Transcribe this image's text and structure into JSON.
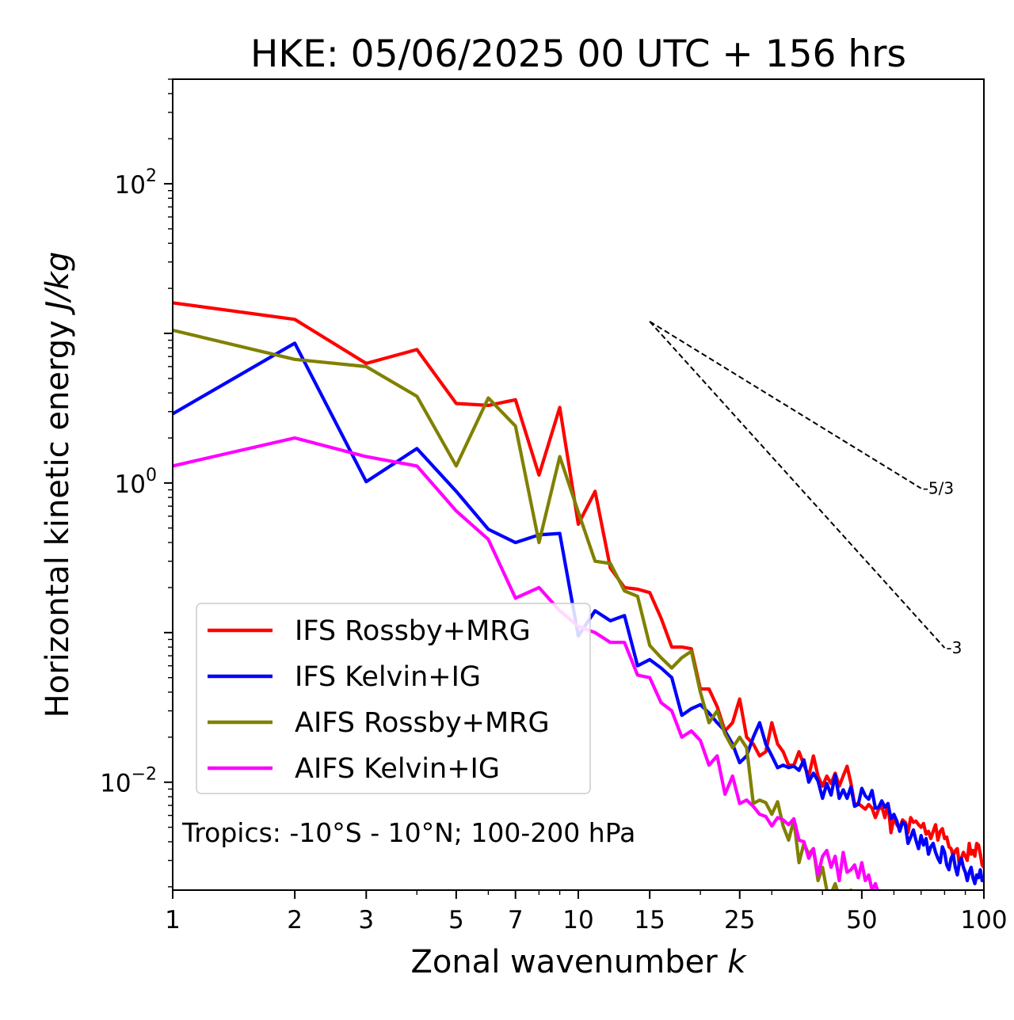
{
  "chart_data": {
    "type": "line",
    "title": "HKE: 05/06/2025 00 UTC + 156 hrs",
    "xlabel_text": "Zonal wavenumber ",
    "xlabel_var": "k",
    "ylabel_text": "Horizontal kinetic energy ",
    "ylabel_unit": "J/kg",
    "x_scale": "log",
    "y_scale": "log",
    "xlim": [
      1,
      100
    ],
    "ylim": [
      0.0019,
      500
    ],
    "x_ticks": [
      1,
      2,
      3,
      5,
      7,
      10,
      15,
      25,
      50,
      100
    ],
    "x_tick_labels": [
      "1",
      "2",
      "3",
      "5",
      "7",
      "10",
      "15",
      "25",
      "50",
      "100"
    ],
    "y_ticks": [
      {
        "value": 100,
        "base": "10",
        "exp": "2"
      },
      {
        "value": 1,
        "base": "10",
        "exp": "0"
      },
      {
        "value": 0.01,
        "base": "10",
        "exp": "−2"
      }
    ],
    "grid": false,
    "legend_position": "lower-left",
    "annotation": "Tropics: -10°S - 10°N; 100-200 hPa",
    "reference_slopes": [
      {
        "label": "-5/3",
        "exponent": -1.6667,
        "x_start": 15,
        "y_start": 12,
        "x_end": 70
      },
      {
        "label": "-3",
        "exponent": -3,
        "x_start": 15,
        "y_start": 12,
        "x_end": 80
      }
    ],
    "series": [
      {
        "name": "IFS Rossby+MRG",
        "color": "#ff0000",
        "x": [
          1,
          2,
          3,
          4,
          5,
          6,
          7,
          8,
          9,
          10,
          11,
          12,
          13,
          14,
          15,
          16,
          17,
          18,
          19,
          20,
          21,
          22,
          23,
          24,
          25,
          26,
          27,
          28,
          29,
          30,
          31,
          32,
          33,
          34,
          35,
          36,
          37,
          38,
          39,
          40,
          41,
          42,
          43,
          44,
          45,
          46,
          47,
          48,
          49,
          50,
          51,
          52,
          53,
          54,
          55,
          56,
          57,
          58,
          59,
          60,
          61,
          62,
          63,
          64,
          65,
          66,
          67,
          68,
          69,
          70,
          71,
          72,
          73,
          74,
          75,
          76,
          77,
          78,
          79,
          80,
          81,
          82,
          83,
          84,
          85,
          86,
          87,
          88,
          89,
          90,
          91,
          92,
          93,
          94,
          95,
          96,
          97,
          98,
          99,
          100
        ],
        "y": [
          16,
          12.4,
          6.3,
          7.8,
          3.4,
          3.3,
          3.6,
          1.13,
          3.2,
          0.53,
          0.88,
          0.27,
          0.2,
          0.195,
          0.185,
          0.125,
          0.08,
          0.08,
          0.078,
          0.042,
          0.042,
          0.032,
          0.022,
          0.025,
          0.036,
          0.02,
          0.018,
          0.015,
          0.016,
          0.025,
          0.018,
          0.016,
          0.013,
          0.013,
          0.016,
          0.013,
          0.011,
          0.015,
          0.011,
          0.0094,
          0.011,
          0.0098,
          0.0115,
          0.0094,
          0.011,
          0.0128,
          0.0099,
          0.0071,
          0.0072,
          0.0069,
          0.0066,
          0.0071,
          0.0067,
          0.0058,
          0.0066,
          0.0069,
          0.0058,
          0.0072,
          0.0046,
          0.0058,
          0.0052,
          0.0049,
          0.0056,
          0.0054,
          0.0046,
          0.0058,
          0.0054,
          0.0055,
          0.0052,
          0.005,
          0.0053,
          0.0045,
          0.0047,
          0.0042,
          0.0047,
          0.0052,
          0.0041,
          0.0047,
          0.0049,
          0.0042,
          0.0043,
          0.0037,
          0.0036,
          0.0032,
          0.0035,
          0.0036,
          0.0028,
          0.0031,
          0.0034,
          0.0032,
          0.003,
          0.0039,
          0.0033,
          0.0035,
          0.0032,
          0.0039,
          0.0038,
          0.0033,
          0.0028,
          0.0027
        ]
      },
      {
        "name": "IFS Kelvin+IG",
        "color": "#0000ff",
        "x": [
          1,
          2,
          3,
          4,
          5,
          6,
          7,
          8,
          9,
          10,
          11,
          12,
          13,
          14,
          15,
          16,
          17,
          18,
          19,
          20,
          21,
          22,
          23,
          24,
          25,
          26,
          27,
          28,
          29,
          30,
          31,
          32,
          33,
          34,
          35,
          36,
          37,
          38,
          39,
          40,
          41,
          42,
          43,
          44,
          45,
          46,
          47,
          48,
          49,
          50,
          51,
          52,
          53,
          54,
          55,
          56,
          57,
          58,
          59,
          60,
          61,
          62,
          63,
          64,
          65,
          66,
          67,
          68,
          69,
          70,
          71,
          72,
          73,
          74,
          75,
          76,
          77,
          78,
          79,
          80,
          81,
          82,
          83,
          84,
          85,
          86,
          87,
          88,
          89,
          90,
          91,
          92,
          93,
          94,
          95,
          96,
          97,
          98,
          99,
          100
        ],
        "y": [
          2.9,
          8.6,
          1.02,
          1.7,
          0.88,
          0.49,
          0.4,
          0.45,
          0.46,
          0.095,
          0.14,
          0.12,
          0.13,
          0.06,
          0.066,
          0.058,
          0.05,
          0.028,
          0.031,
          0.033,
          0.029,
          0.025,
          0.022,
          0.018,
          0.0135,
          0.015,
          0.02,
          0.025,
          0.018,
          0.015,
          0.0125,
          0.013,
          0.0125,
          0.0128,
          0.012,
          0.0141,
          0.01,
          0.0115,
          0.0102,
          0.0078,
          0.0098,
          0.0082,
          0.0112,
          0.0078,
          0.0089,
          0.0078,
          0.0093,
          0.0069,
          0.0071,
          0.0091,
          0.0081,
          0.0077,
          0.0088,
          0.0067,
          0.0068,
          0.0075,
          0.0068,
          0.0072,
          0.0057,
          0.0061,
          0.0055,
          0.0047,
          0.0054,
          0.0052,
          0.0039,
          0.0043,
          0.0048,
          0.0041,
          0.0036,
          0.0044,
          0.0038,
          0.0042,
          0.0033,
          0.0037,
          0.0039,
          0.0034,
          0.0031,
          0.0029,
          0.0037,
          0.0034,
          0.0028,
          0.0026,
          0.0031,
          0.0033,
          0.0027,
          0.0024,
          0.0029,
          0.0031,
          0.0027,
          0.0025,
          0.0022,
          0.0025,
          0.0027,
          0.0023,
          0.0021,
          0.0024,
          0.0023,
          0.0026,
          0.0022,
          0.0023
        ]
      },
      {
        "name": "AIFS Rossby+MRG",
        "color": "#808000",
        "x": [
          1,
          2,
          3,
          4,
          5,
          6,
          7,
          8,
          9,
          10,
          11,
          12,
          13,
          14,
          15,
          16,
          17,
          18,
          19,
          20,
          21,
          22,
          23,
          24,
          25,
          26,
          27,
          28,
          29,
          30,
          31,
          32,
          33,
          34,
          35,
          36,
          37,
          38,
          39,
          40,
          41,
          42,
          43,
          44,
          45,
          46,
          47,
          48,
          49,
          50,
          51,
          52,
          53,
          54,
          55
        ],
        "y": [
          10.5,
          6.7,
          6,
          3.8,
          1.3,
          3.7,
          2.4,
          0.4,
          1.5,
          0.64,
          0.3,
          0.29,
          0.19,
          0.175,
          0.082,
          0.068,
          0.058,
          0.068,
          0.075,
          0.04,
          0.025,
          0.03,
          0.021,
          0.017,
          0.02,
          0.017,
          0.0072,
          0.0076,
          0.0073,
          0.0061,
          0.0074,
          0.0051,
          0.0041,
          0.0056,
          0.0029,
          0.0039,
          0.0033,
          0.0036,
          0.0022,
          0.0027,
          0.0019,
          0.0018,
          0.0021,
          0.0017,
          0.0018,
          0.0013,
          0.0019,
          0.0014,
          0.0016,
          0.0012,
          0.0011,
          0.0014,
          0.0012,
          0.0013,
          0.0011
        ]
      },
      {
        "name": "AIFS Kelvin+IG",
        "color": "#ff00ff",
        "x": [
          1,
          2,
          3,
          4,
          5,
          6,
          7,
          8,
          9,
          10,
          11,
          12,
          13,
          14,
          15,
          16,
          17,
          18,
          19,
          20,
          21,
          22,
          23,
          24,
          25,
          26,
          27,
          28,
          29,
          30,
          31,
          32,
          33,
          34,
          35,
          36,
          37,
          38,
          39,
          40,
          41,
          42,
          43,
          44,
          45,
          46,
          47,
          48,
          49,
          50,
          51,
          52,
          53,
          54,
          55
        ],
        "y": [
          1.3,
          2,
          1.5,
          1.3,
          0.65,
          0.42,
          0.17,
          0.2,
          0.14,
          0.11,
          0.1,
          0.086,
          0.086,
          0.052,
          0.05,
          0.034,
          0.03,
          0.02,
          0.022,
          0.019,
          0.013,
          0.015,
          0.0083,
          0.011,
          0.0072,
          0.0076,
          0.0069,
          0.0061,
          0.0059,
          0.0051,
          0.0058,
          0.0056,
          0.0052,
          0.0057,
          0.0041,
          0.004,
          0.0031,
          0.0036,
          0.0024,
          0.0032,
          0.0035,
          0.0027,
          0.0032,
          0.0022,
          0.0034,
          0.0025,
          0.0026,
          0.0028,
          0.0023,
          0.0029,
          0.0022,
          0.0024,
          0.0019,
          0.0021,
          0.0018
        ]
      }
    ]
  }
}
